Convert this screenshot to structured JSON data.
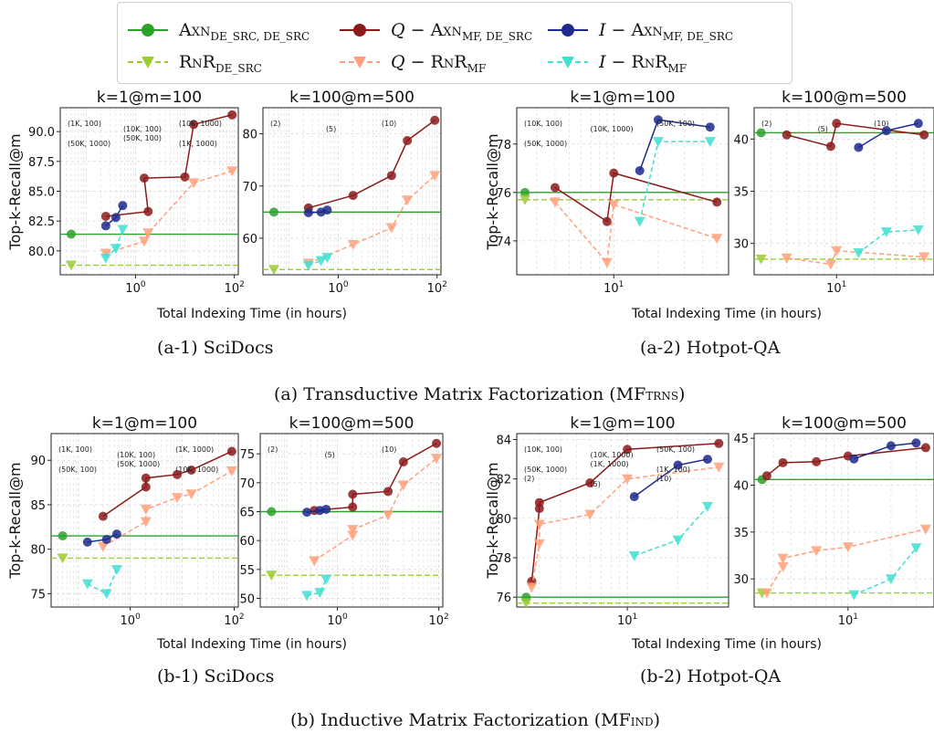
{
  "colors": {
    "axn": "#2ca02c",
    "rnr": "#9acd32",
    "q_axn": "#8b1a1a",
    "q_rnr": "#ffa07a",
    "i_axn": "#1f2a8c",
    "i_rnr": "#40e0d0"
  },
  "legend": [
    {
      "key": "axn",
      "label": "Axn",
      "sub": "DE_SRC, DE_SRC",
      "prefix": ""
    },
    {
      "key": "q_axn",
      "label": "Axn",
      "sub": "MF, DE_SRC",
      "prefix": "Q − "
    },
    {
      "key": "i_axn",
      "label": "Axn",
      "sub": "MF, DE_SRC",
      "prefix": "I − "
    },
    {
      "key": "rnr",
      "label": "RnR",
      "sub": "DE_SRC",
      "prefix": ""
    },
    {
      "key": "q_rnr",
      "label": "RnR",
      "sub": "MF",
      "prefix": "Q − "
    },
    {
      "key": "i_rnr",
      "label": "RnR",
      "sub": "MF",
      "prefix": "I − "
    }
  ],
  "captions": {
    "a1": "(a-1) SciDocs",
    "a2": "(a-2) Hotpot-QA",
    "a": "(a) Transductive Matrix Factorization (MF",
    "a_sub": "TRNS",
    "b1": "(b-1) SciDocs",
    "b2": "(b-2) Hotpot-QA",
    "b": "(b) Inductive Matrix Factorization (MF",
    "b_sub": "IND"
  },
  "axis_labels": {
    "y": "Top-k-Recall@m",
    "x": "Total Indexing Time (in hours)"
  },
  "chart_data": [
    {
      "type": "line",
      "title": "k=1@m=100",
      "dataset": "SciDocs",
      "setting": "Transductive",
      "xscale": "log",
      "xlim": [
        0.03,
        120
      ],
      "ylim": [
        78,
        92
      ],
      "xticks": [
        1,
        100
      ],
      "xtick_labels": [
        "10^0",
        "10^2"
      ],
      "yticks": [
        80,
        82.5,
        85,
        87.5,
        90
      ],
      "ytick_labels": [
        "80.0",
        "82.5",
        "85.0",
        "87.5",
        "90.0"
      ],
      "series": [
        {
          "key": "axn",
          "x": [
            0.05
          ],
          "y": [
            81.4
          ]
        },
        {
          "key": "rnr",
          "x": [
            0.05
          ],
          "y": [
            78.8
          ],
          "hline": 78.8
        },
        {
          "key": "axn_line",
          "hline": 81.4
        },
        {
          "key": "q_axn",
          "x": [
            0.25,
            1.8,
            1.5,
            10,
            15,
            90
          ],
          "y": [
            82.9,
            83.3,
            86.1,
            86.2,
            90.6,
            91.4
          ]
        },
        {
          "key": "q_rnr",
          "x": [
            0.25,
            1.5,
            1.8,
            15,
            90
          ],
          "y": [
            79.8,
            80.8,
            81.5,
            85.7,
            86.7
          ]
        },
        {
          "key": "i_axn",
          "x": [
            0.25,
            0.4,
            0.55
          ],
          "y": [
            82.1,
            82.8,
            83.8
          ]
        },
        {
          "key": "i_rnr",
          "x": [
            0.25,
            0.4,
            0.55
          ],
          "y": [
            79.4,
            80.2,
            81.8
          ]
        }
      ],
      "annotations": [
        "(1K, 100)",
        "(10K, 100)",
        "(10K, 1000)",
        "(50K, 1000)",
        "(50K, 100)",
        "(1K, 1000)"
      ]
    },
    {
      "type": "line",
      "title": "k=100@m=500",
      "dataset": "SciDocs",
      "setting": "Transductive",
      "xscale": "log",
      "xlim": [
        0.03,
        120
      ],
      "ylim": [
        53,
        85
      ],
      "xticks": [
        1,
        100
      ],
      "xtick_labels": [
        "10^0",
        "10^2"
      ],
      "yticks": [
        60,
        70,
        80
      ],
      "ytick_labels": [
        "60",
        "70",
        "80"
      ],
      "series": [
        {
          "key": "axn",
          "x": [
            0.05
          ],
          "y": [
            65.0
          ],
          "hline": 65.0
        },
        {
          "key": "rnr",
          "x": [
            0.05
          ],
          "y": [
            54.0
          ],
          "hline": 54.0
        },
        {
          "key": "q_axn",
          "x": [
            0.25,
            2,
            12,
            25,
            90
          ],
          "y": [
            65.8,
            68.2,
            72.0,
            78.7,
            82.6
          ]
        },
        {
          "key": "q_rnr",
          "x": [
            0.25,
            2,
            12,
            25,
            90
          ],
          "y": [
            55.2,
            58.8,
            62.0,
            67.3,
            72.0
          ]
        },
        {
          "key": "i_axn",
          "x": [
            0.25,
            0.45,
            0.6
          ],
          "y": [
            64.9,
            65.0,
            65.4
          ]
        },
        {
          "key": "i_rnr",
          "x": [
            0.25,
            0.45,
            0.6
          ],
          "y": [
            54.8,
            55.7,
            56.3
          ]
        }
      ],
      "annotations": [
        "(2)",
        "(5)",
        "(10)"
      ]
    },
    {
      "type": "line",
      "title": "k=1@m=100",
      "dataset": "Hotpot-QA",
      "setting": "Transductive",
      "xscale": "log",
      "xlim": [
        2.2,
        60
      ],
      "ylim": [
        72.6,
        79.5
      ],
      "xticks": [
        10
      ],
      "xtick_labels": [
        "10^1"
      ],
      "yticks": [
        74,
        76,
        78
      ],
      "ytick_labels": [
        "74",
        "76",
        "78"
      ],
      "series": [
        {
          "key": "axn",
          "x": [
            2.5
          ],
          "y": [
            76.0
          ],
          "hline": 76.0
        },
        {
          "key": "rnr",
          "x": [
            2.5
          ],
          "y": [
            75.7
          ],
          "hline": 75.7
        },
        {
          "key": "q_axn",
          "x": [
            4,
            9,
            10,
            50
          ],
          "y": [
            76.2,
            74.8,
            76.8,
            75.6
          ]
        },
        {
          "key": "q_rnr",
          "x": [
            4,
            9,
            10,
            50
          ],
          "y": [
            75.6,
            73.1,
            75.5,
            74.1
          ]
        },
        {
          "key": "i_axn",
          "x": [
            15,
            20,
            45
          ],
          "y": [
            76.9,
            79.0,
            78.7
          ]
        },
        {
          "key": "i_rnr",
          "x": [
            15,
            20,
            45
          ],
          "y": [
            74.8,
            78.1,
            78.1
          ]
        }
      ],
      "annotations": [
        "(10K, 100)",
        "(10K, 1000)",
        "(50K, 100)",
        "(50K, 1000)"
      ]
    },
    {
      "type": "line",
      "title": "k=100@m=500",
      "dataset": "Hotpot-QA",
      "setting": "Transductive",
      "xscale": "log",
      "xlim": [
        2.2,
        60
      ],
      "ylim": [
        27,
        43
      ],
      "xticks": [
        10
      ],
      "xtick_labels": [
        "10^1"
      ],
      "yticks": [
        30,
        35,
        40
      ],
      "ytick_labels": [
        "30",
        "35",
        "40"
      ],
      "series": [
        {
          "key": "axn",
          "x": [
            2.5
          ],
          "y": [
            40.6
          ],
          "hline": 40.6
        },
        {
          "key": "rnr",
          "x": [
            2.5
          ],
          "y": [
            28.5
          ],
          "hline": 28.5
        },
        {
          "key": "q_axn",
          "x": [
            4,
            9,
            10,
            50
          ],
          "y": [
            40.4,
            39.3,
            41.5,
            40.4
          ]
        },
        {
          "key": "q_rnr",
          "x": [
            4,
            9,
            10,
            50
          ],
          "y": [
            28.6,
            28.0,
            29.3,
            28.7
          ]
        },
        {
          "key": "i_axn",
          "x": [
            15,
            25,
            45
          ],
          "y": [
            39.2,
            40.8,
            41.5
          ]
        },
        {
          "key": "i_rnr",
          "x": [
            15,
            25,
            45
          ],
          "y": [
            29.1,
            31.1,
            31.3
          ]
        }
      ],
      "annotations": [
        "(2)",
        "(5)",
        "(10)"
      ]
    },
    {
      "type": "line",
      "title": "k=1@m=100",
      "dataset": "SciDocs",
      "setting": "Inductive",
      "xscale": "log",
      "xlim": [
        0.03,
        120
      ],
      "ylim": [
        73.5,
        93
      ],
      "xticks": [
        1,
        100
      ],
      "xtick_labels": [
        "10^0",
        "10^2"
      ],
      "yticks": [
        75,
        80,
        85,
        90
      ],
      "ytick_labels": [
        "75",
        "80",
        "85",
        "90"
      ],
      "series": [
        {
          "key": "axn",
          "x": [
            0.05
          ],
          "y": [
            81.5
          ],
          "hline": 81.5
        },
        {
          "key": "rnr",
          "x": [
            0.05
          ],
          "y": [
            79.0
          ],
          "hline": 79.0
        },
        {
          "key": "q_axn",
          "x": [
            0.3,
            2,
            2,
            8,
            15,
            90
          ],
          "y": [
            83.7,
            87.0,
            88.0,
            88.4,
            88.9,
            91.0
          ]
        },
        {
          "key": "q_rnr",
          "x": [
            0.3,
            2,
            2,
            8,
            15,
            90
          ],
          "y": [
            80.3,
            83.1,
            84.5,
            85.8,
            86.2,
            88.8
          ]
        },
        {
          "key": "i_axn",
          "x": [
            0.15,
            0.35,
            0.55
          ],
          "y": [
            80.8,
            81.1,
            81.7
          ]
        },
        {
          "key": "i_rnr",
          "x": [
            0.15,
            0.35,
            0.55
          ],
          "y": [
            76.1,
            75.0,
            77.7
          ]
        }
      ],
      "annotations": [
        "(1K, 100)",
        "(10K, 100)",
        "(1K, 1000)",
        "(50K, 100)",
        "(50K, 1000)",
        "(10K, 1000)"
      ]
    },
    {
      "type": "line",
      "title": "k=100@m=500",
      "dataset": "SciDocs",
      "setting": "Inductive",
      "xscale": "log",
      "xlim": [
        0.03,
        120
      ],
      "ylim": [
        48.5,
        78.5
      ],
      "xticks": [
        1,
        100
      ],
      "xtick_labels": [
        "10^0",
        "10^2"
      ],
      "yticks": [
        50,
        55,
        60,
        65,
        70,
        75
      ],
      "ytick_labels": [
        "50",
        "55",
        "60",
        "65",
        "70",
        "75"
      ],
      "series": [
        {
          "key": "axn",
          "x": [
            0.05
          ],
          "y": [
            65.0
          ],
          "hline": 65.0
        },
        {
          "key": "rnr",
          "x": [
            0.05
          ],
          "y": [
            54.0
          ],
          "hline": 54.0
        },
        {
          "key": "q_axn",
          "x": [
            0.35,
            2,
            2,
            10,
            20,
            90
          ],
          "y": [
            65.2,
            65.8,
            68.0,
            68.5,
            73.6,
            76.8
          ]
        },
        {
          "key": "q_rnr",
          "x": [
            0.35,
            2,
            2,
            10,
            20,
            90
          ],
          "y": [
            56.5,
            60.9,
            61.9,
            64.4,
            69.6,
            74.2
          ]
        },
        {
          "key": "i_axn",
          "x": [
            0.25,
            0.45,
            0.6
          ],
          "y": [
            64.9,
            65.2,
            65.4
          ]
        },
        {
          "key": "i_rnr",
          "x": [
            0.25,
            0.45,
            0.6
          ],
          "y": [
            50.5,
            51.0,
            53.3
          ]
        }
      ],
      "annotations": [
        "(2)",
        "(5)",
        "(10)"
      ]
    },
    {
      "type": "line",
      "title": "k=1@m=100",
      "dataset": "Hotpot-QA",
      "setting": "Inductive",
      "xscale": "log",
      "xlim": [
        2.2,
        40
      ],
      "ylim": [
        75.5,
        84.3
      ],
      "xticks": [
        10
      ],
      "xtick_labels": [
        "10^1"
      ],
      "yticks": [
        76,
        78,
        80,
        82,
        84
      ],
      "ytick_labels": [
        "76",
        "78",
        "80",
        "82",
        "84"
      ],
      "series": [
        {
          "key": "axn",
          "x": [
            2.5
          ],
          "y": [
            76.0
          ],
          "hline": 76.0
        },
        {
          "key": "rnr",
          "x": [
            2.5
          ],
          "y": [
            75.7
          ],
          "hline": 75.7
        },
        {
          "key": "q_axn",
          "x": [
            2.7,
            3,
            3,
            6,
            10,
            35
          ],
          "y": [
            76.8,
            80.5,
            80.8,
            81.8,
            83.5,
            83.8
          ]
        },
        {
          "key": "q_rnr",
          "x": [
            2.7,
            3,
            3,
            6,
            10,
            35
          ],
          "y": [
            76.5,
            78.7,
            79.7,
            80.2,
            82.0,
            82.6
          ]
        },
        {
          "key": "i_axn",
          "x": [
            11,
            20,
            30
          ],
          "y": [
            81.1,
            82.7,
            83.0
          ]
        },
        {
          "key": "i_rnr",
          "x": [
            11,
            20,
            30
          ],
          "y": [
            78.1,
            78.9,
            80.6
          ]
        }
      ],
      "annotations": [
        "(10K, 100)",
        "(10K, 1000)",
        "(50K, 100)",
        "(50K, 1000)",
        "(1K, 1000)",
        "(1K, 100)",
        "(2)",
        "(5)",
        "(10)"
      ]
    },
    {
      "type": "line",
      "title": "k=100@m=500",
      "dataset": "Hotpot-QA",
      "setting": "Inductive",
      "xscale": "log",
      "xlim": [
        2.2,
        40
      ],
      "ylim": [
        27,
        45.5
      ],
      "xticks": [
        10
      ],
      "xtick_labels": [
        "10^1"
      ],
      "yticks": [
        30,
        35,
        40,
        45
      ],
      "ytick_labels": [
        "30",
        "35",
        "40",
        "45"
      ],
      "series": [
        {
          "key": "axn",
          "x": [
            2.5
          ],
          "y": [
            40.6
          ],
          "hline": 40.6
        },
        {
          "key": "rnr",
          "x": [
            2.5
          ],
          "y": [
            28.5
          ],
          "hline": 28.5
        },
        {
          "key": "q_axn",
          "x": [
            2.7,
            3.5,
            6,
            10,
            35
          ],
          "y": [
            41.0,
            42.4,
            42.5,
            43.1,
            44.0
          ]
        },
        {
          "key": "q_rnr",
          "x": [
            2.7,
            3.5,
            3.5,
            6,
            10,
            35
          ],
          "y": [
            28.5,
            31.3,
            32.2,
            33.0,
            33.4,
            35.3
          ]
        },
        {
          "key": "i_axn",
          "x": [
            11,
            20,
            30
          ],
          "y": [
            42.8,
            44.2,
            44.5
          ]
        },
        {
          "key": "i_rnr",
          "x": [
            11,
            20,
            30
          ],
          "y": [
            28.3,
            30.0,
            33.3
          ]
        }
      ],
      "annotations": []
    }
  ]
}
